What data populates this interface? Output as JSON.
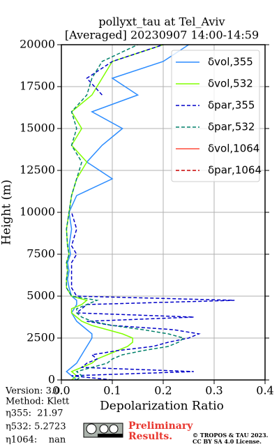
{
  "chart_data": {
    "type": "line",
    "title": [
      "pollyxt_tau at Tel_Aviv",
      "[Averaged] 20230907 14:00-14:59"
    ],
    "x_label": "Depolarization Ratio",
    "y_label": "Height (m)",
    "xlim": [
      0,
      0.4
    ],
    "xticks": [
      {
        "value": 0,
        "label": "0.0"
      },
      0.1,
      0.2,
      0.3,
      0.4
    ],
    "ylim": [
      0,
      20000
    ],
    "yticks": [
      0,
      2500,
      5000,
      7500,
      10000,
      12500,
      15000,
      17500,
      20000
    ],
    "grid": true,
    "legend": "upper right",
    "x": [
      0,
      250,
      500,
      750,
      1000,
      1250,
      1500,
      1750,
      2000,
      2250,
      2500,
      2750,
      3000,
      3250,
      3500,
      3750,
      4000,
      4250,
      4500,
      4750,
      5000,
      5500,
      6000,
      6500,
      7000,
      7500,
      8000,
      9000,
      10000,
      11000,
      12000,
      13000,
      14000,
      15000,
      16000,
      17000,
      18000,
      19000,
      20000
    ],
    "series": [
      {
        "name": "δvol,355",
        "color": "#2b8cff",
        "linestyle": "solid",
        "values": [
          0.03,
          0.02,
          0.01,
          0.02,
          0.03,
          0.035,
          0.04,
          0.045,
          0.05,
          0.055,
          0.06,
          0.06,
          0.05,
          0.04,
          0.03,
          0.025,
          0.02,
          0.025,
          0.03,
          0.03,
          0.02,
          0.015,
          0.012,
          0.015,
          0.012,
          0.018,
          0.015,
          0.02,
          0.015,
          0.03,
          0.1,
          0.05,
          0.08,
          0.12,
          0.06,
          0.15,
          0.1,
          0.2,
          0.25
        ]
      },
      {
        "name": "δvol,532",
        "color": "#80ff00",
        "linestyle": "solid",
        "values": [
          0.02,
          0.03,
          0.02,
          0.04,
          0.06,
          0.07,
          0.09,
          0.11,
          0.13,
          0.14,
          0.14,
          0.12,
          0.09,
          0.06,
          0.04,
          0.03,
          0.02,
          0.02,
          0.04,
          0.05,
          0.02,
          0.01,
          0.01,
          0.012,
          0.01,
          0.015,
          0.012,
          0.01,
          0.015,
          0.02,
          0.03,
          0.05,
          0.02,
          0.04,
          0.02,
          0.06,
          0.08,
          0.1,
          0.2
        ]
      },
      {
        "name": "δpar,355",
        "color": "#0000c8",
        "linestyle": "dashed",
        "values": [
          0.1,
          0.02,
          0.26,
          0.04,
          0.05,
          0.07,
          0.06,
          0.11,
          0.18,
          0.21,
          0.25,
          0.27,
          0.22,
          0.1,
          0.05,
          0.26,
          0.03,
          0.04,
          0.05,
          0.34,
          0.03,
          0.02,
          0.02,
          0.02,
          0.02,
          0.03,
          0.02,
          0.03,
          0.02,
          null,
          null,
          null,
          null,
          null,
          null,
          0.08,
          0.05,
          0.1,
          0.2
        ]
      },
      {
        "name": "δpar,532",
        "color": "#00806a",
        "linestyle": "dashed",
        "values": [
          0.03,
          0.04,
          0.03,
          0.06,
          0.09,
          0.1,
          0.12,
          0.16,
          0.21,
          0.23,
          0.24,
          0.21,
          0.16,
          0.1,
          0.06,
          0.04,
          0.03,
          0.03,
          0.05,
          0.07,
          0.02,
          0.01,
          0.01,
          0.012,
          0.01,
          0.015,
          0.012,
          0.01,
          0.015,
          0.02,
          0.03,
          0.04,
          0.02,
          0.03,
          0.02,
          0.05,
          0.06,
          0.08,
          0.15
        ]
      },
      {
        "name": "δvol,1064",
        "color": "#ff4a3a",
        "linestyle": "solid",
        "values": [
          null,
          null,
          null,
          null,
          null,
          null,
          null,
          null,
          null,
          null,
          null,
          null,
          null,
          null,
          null,
          null,
          null,
          null,
          null,
          null,
          null,
          null,
          null,
          null,
          null,
          null,
          null,
          null,
          null,
          null,
          null,
          null,
          null,
          null,
          null,
          null,
          null,
          null,
          null
        ]
      },
      {
        "name": "δpar,1064",
        "color": "#c80000",
        "linestyle": "dashed",
        "values": [
          null,
          null,
          null,
          null,
          null,
          null,
          null,
          null,
          null,
          null,
          null,
          null,
          null,
          null,
          null,
          null,
          null,
          null,
          null,
          null,
          null,
          null,
          null,
          null,
          null,
          null,
          null,
          null,
          null,
          null,
          null,
          null,
          null,
          null,
          null,
          null,
          null,
          null,
          null
        ]
      }
    ],
    "info": [
      "Version: 3.0",
      "Method: Klett",
      "η355:  21.97",
      "η532: 5.2723",
      "η1064:    nan"
    ],
    "preliminary": [
      "Preliminary",
      "Results."
    ],
    "license": [
      "© TROPOS & TAU 2023.",
      "CC BY SA 4.0 License."
    ]
  }
}
